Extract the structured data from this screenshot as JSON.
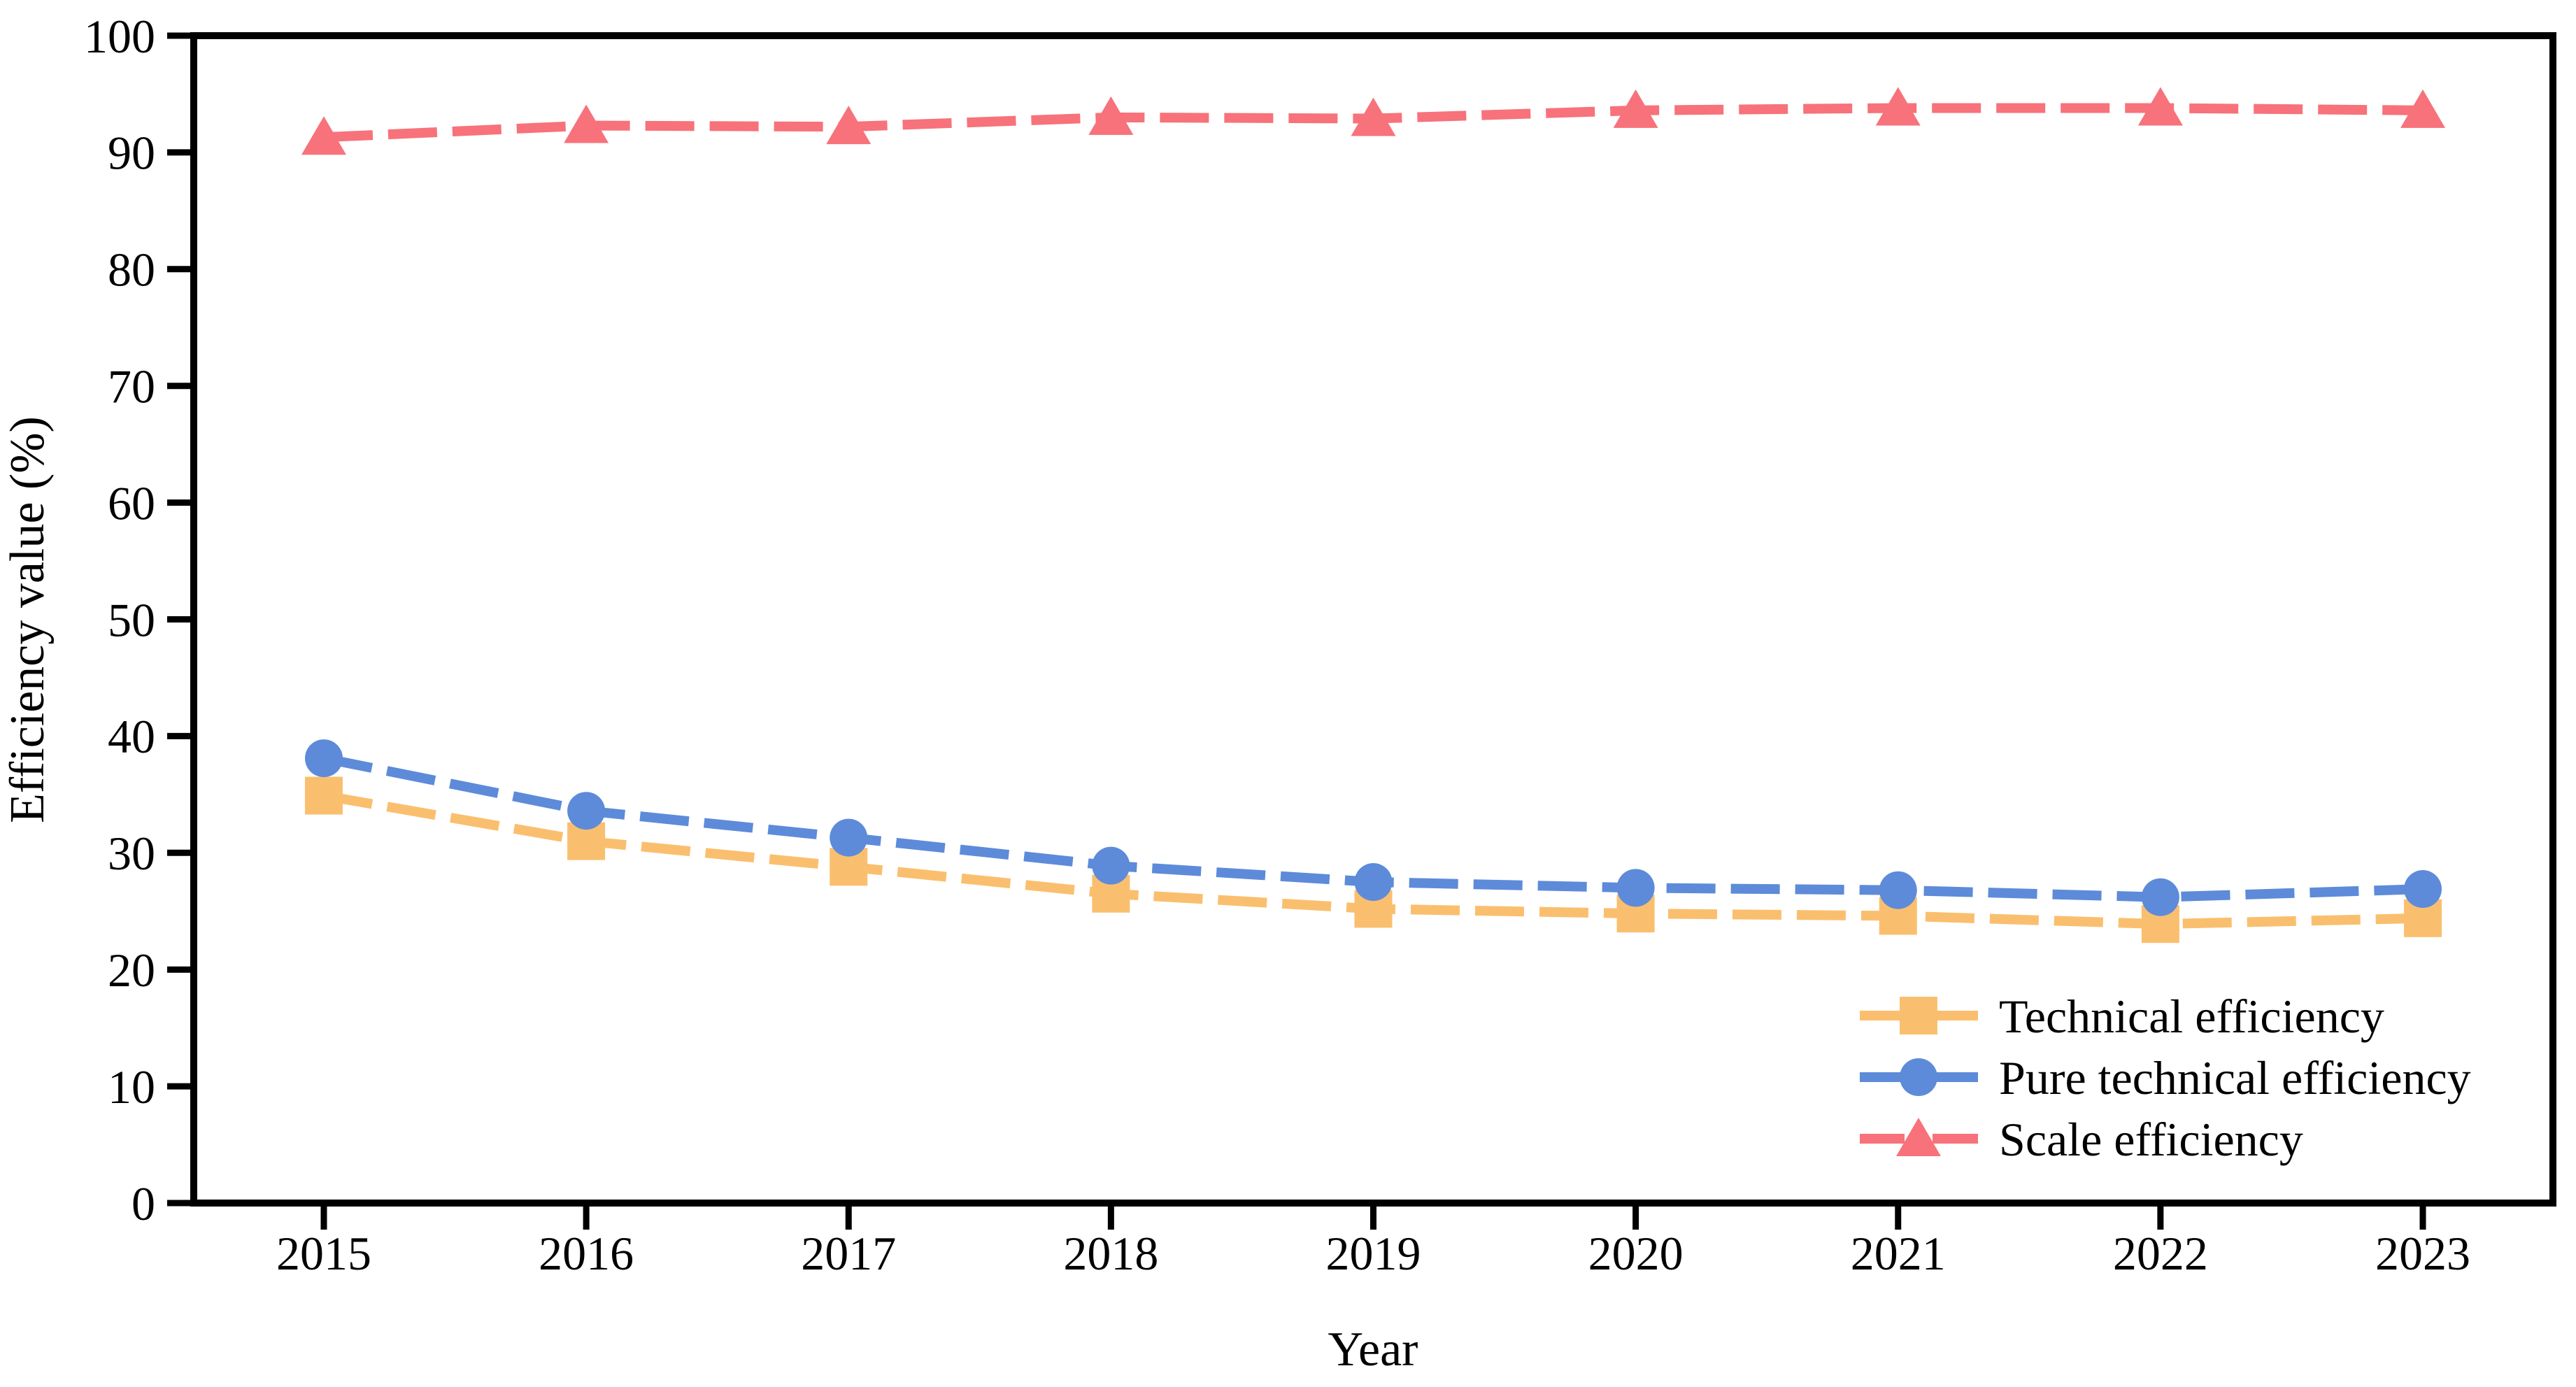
{
  "figure": {
    "background": "#ffffff",
    "axis_color": "#000000"
  },
  "chart_data": {
    "type": "line",
    "title": "",
    "xlabel": "Year",
    "ylabel": "Efficiency value (%)",
    "categories": [
      "2015",
      "2016",
      "2017",
      "2018",
      "2019",
      "2020",
      "2021",
      "2022",
      "2023"
    ],
    "series": [
      {
        "name": "Technical efficiency",
        "marker": "square",
        "color": "#FABF6E",
        "values": [
          34.9,
          31.0,
          28.8,
          26.5,
          25.2,
          24.8,
          24.6,
          23.9,
          24.4
        ]
      },
      {
        "name": "Pure technical efficiency",
        "marker": "circle",
        "color": "#5D8BD9",
        "values": [
          38.1,
          33.6,
          31.3,
          28.9,
          27.5,
          27.0,
          26.8,
          26.2,
          26.9
        ]
      },
      {
        "name": "Scale efficiency",
        "marker": "triangle",
        "color": "#F7727A",
        "values": [
          91.3,
          92.3,
          92.2,
          93.0,
          92.9,
          93.6,
          93.8,
          93.8,
          93.6
        ]
      }
    ],
    "ylim": [
      0,
      100
    ],
    "y_ticks": [
      0,
      10,
      20,
      30,
      40,
      50,
      60,
      70,
      80,
      90,
      100
    ],
    "line_style": "dashed",
    "grid": false,
    "legend_position": "lower right"
  }
}
